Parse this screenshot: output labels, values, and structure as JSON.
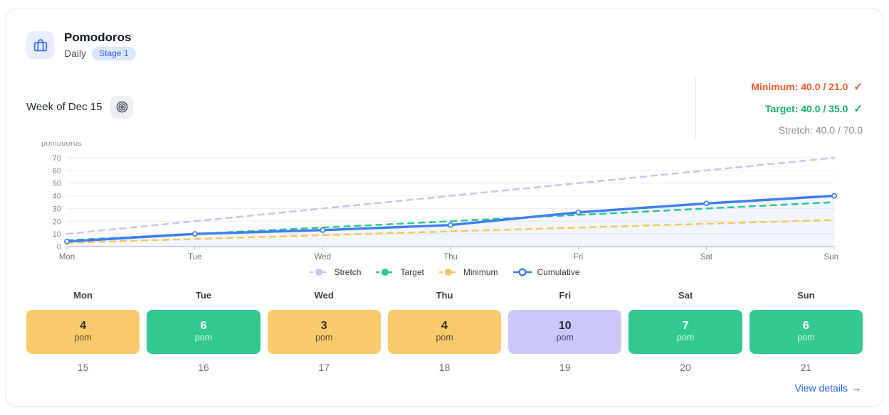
{
  "header": {
    "icon": "briefcase-icon",
    "title": "Pomodoros",
    "frequency": "Daily",
    "stage_badge": "Stage 1"
  },
  "week": {
    "label": "Week of Dec 15"
  },
  "glyphs": {
    "check": "✓",
    "arrow": "→"
  },
  "goals": [
    {
      "id": "minimum",
      "label": "Minimum: 40.0 / 21.0",
      "met": true,
      "color": "#ee5b2b",
      "bold": true
    },
    {
      "id": "target",
      "label": "Target: 40.0 / 35.0",
      "met": true,
      "color": "#1cae68",
      "bold": true
    },
    {
      "id": "stretch",
      "label": "Stretch: 40.0 / 70.0",
      "met": false,
      "color": "#8a8f98",
      "bold": false
    }
  ],
  "chart_data": {
    "type": "line",
    "x": [
      "Mon",
      "Tue",
      "Wed",
      "Thu",
      "Fri",
      "Sat",
      "Sun"
    ],
    "ylabel": "pomodoros",
    "ylim": [
      0,
      70
    ],
    "yticks": [
      0,
      10,
      20,
      30,
      40,
      50,
      60,
      70
    ],
    "grid": true,
    "legend_position": "bottom",
    "series": [
      {
        "name": "Stretch",
        "style": "dashed",
        "color": "#cac4f4",
        "values": [
          10,
          20,
          30,
          40,
          50,
          60,
          70
        ],
        "markers": "none"
      },
      {
        "name": "Target",
        "style": "dashed",
        "color": "#2ec98c",
        "values": [
          5,
          10,
          15,
          20,
          25,
          30,
          35
        ],
        "markers": "none"
      },
      {
        "name": "Minimum",
        "style": "dashed",
        "color": "#f6c75f",
        "values": [
          3,
          6,
          9,
          12,
          15,
          18,
          21
        ],
        "markers": "none"
      },
      {
        "name": "Cumulative",
        "style": "solid",
        "color": "#3e7ef0",
        "values": [
          4,
          10,
          13,
          17,
          27,
          34,
          40
        ],
        "markers": "open-circle",
        "area_fill": true
      }
    ]
  },
  "days": [
    {
      "weekday": "Mon",
      "value": "4",
      "unit": "pom",
      "date": "15",
      "status": "minimum"
    },
    {
      "weekday": "Tue",
      "value": "6",
      "unit": "pom",
      "date": "16",
      "status": "target"
    },
    {
      "weekday": "Wed",
      "value": "3",
      "unit": "pom",
      "date": "17",
      "status": "minimum"
    },
    {
      "weekday": "Thu",
      "value": "4",
      "unit": "pom",
      "date": "18",
      "status": "minimum"
    },
    {
      "weekday": "Fri",
      "value": "10",
      "unit": "pom",
      "date": "19",
      "status": "stretch"
    },
    {
      "weekday": "Sat",
      "value": "7",
      "unit": "pom",
      "date": "20",
      "status": "target"
    },
    {
      "weekday": "Sun",
      "value": "6",
      "unit": "pom",
      "date": "21",
      "status": "target"
    }
  ],
  "day_colors": {
    "minimum": {
      "bg": "#f8ca6b",
      "text": "#33301f"
    },
    "target": {
      "bg": "#33c98e",
      "text": "#ffffff"
    },
    "stretch": {
      "bg": "#cbc7f8",
      "text": "#2e2a47"
    }
  },
  "footer": {
    "link_label": "View details"
  }
}
